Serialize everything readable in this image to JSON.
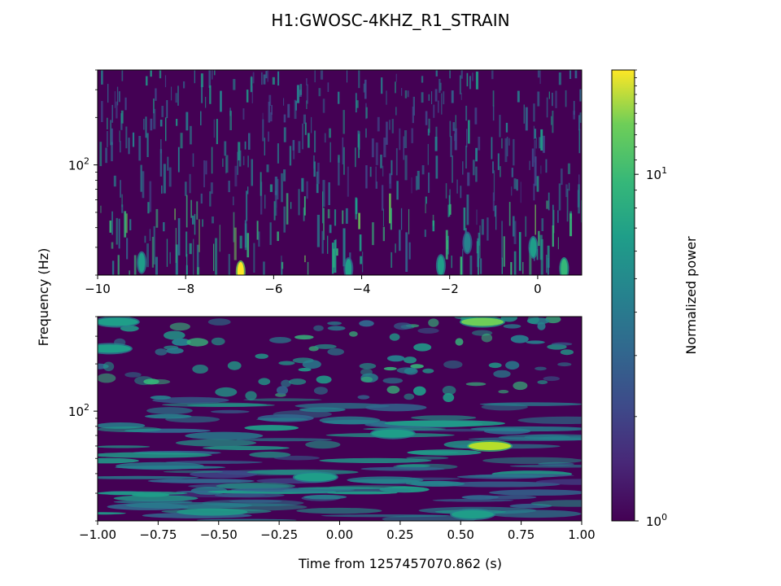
{
  "chart_data": [
    {
      "type": "heatmap",
      "title": "H1:GWOSC-4KHZ_R1_STRAIN",
      "ylabel": "Frequency (Hz)",
      "xlim": [
        -10,
        1
      ],
      "ylim": [
        20,
        400
      ],
      "y_scale": "log",
      "x_ticks": [
        "−10",
        "−8",
        "−6",
        "−4",
        "−2",
        "0"
      ],
      "x_tick_values": [
        -10,
        -8,
        -6,
        -4,
        -2,
        0
      ],
      "y_tick_label": "10^2",
      "y_tick_value": 100,
      "colormap": "viridis",
      "pattern": "dense vertical streaks across all frequencies, brightest blobs near the bottom edge",
      "hotspots": [
        {
          "x": -6.75,
          "y": 21,
          "level": 1.0
        },
        {
          "x": -9.0,
          "y": 24,
          "level": 0.55
        },
        {
          "x": -2.2,
          "y": 23,
          "level": 0.6
        },
        {
          "x": 0.6,
          "y": 22,
          "level": 0.7
        },
        {
          "x": -0.1,
          "y": 30,
          "level": 0.55
        },
        {
          "x": -4.3,
          "y": 22,
          "level": 0.5
        },
        {
          "x": -1.6,
          "y": 32,
          "level": 0.45
        }
      ]
    },
    {
      "type": "heatmap",
      "xlabel": "Time from 1257457070.862 (s)",
      "xlim": [
        -1.0,
        1.0
      ],
      "ylim": [
        20,
        400
      ],
      "y_scale": "log",
      "x_ticks": [
        "−1.00",
        "−0.75",
        "−0.50",
        "−0.25",
        "0.00",
        "0.25",
        "0.50",
        "0.75",
        "1.00"
      ],
      "x_tick_values": [
        -1.0,
        -0.75,
        -0.5,
        -0.25,
        0.0,
        0.25,
        0.5,
        0.75,
        1.0
      ],
      "y_tick_label": "10^2",
      "y_tick_value": 100,
      "colormap": "viridis",
      "pattern": "horizontal streaks at low frequency, blobby texture at high frequency",
      "hotspots": [
        {
          "x": 0.62,
          "y": 60,
          "level": 0.85
        },
        {
          "x": 0.22,
          "y": 72,
          "level": 0.6
        },
        {
          "x": -0.1,
          "y": 38,
          "level": 0.55
        },
        {
          "x": 0.55,
          "y": 22,
          "level": 0.55
        },
        {
          "x": 0.59,
          "y": 370,
          "level": 0.75
        },
        {
          "x": -0.92,
          "y": 370,
          "level": 0.6
        },
        {
          "x": -0.95,
          "y": 250,
          "level": 0.55
        }
      ]
    }
  ],
  "shared": {
    "ylabel": "Frequency (Hz)"
  },
  "colorbar": {
    "label": "Normalized power",
    "scale": "log",
    "range": [
      1,
      20
    ],
    "ticks": [
      {
        "label": "10^0",
        "value": 1
      },
      {
        "label": "10^1",
        "value": 10
      }
    ],
    "colormap": "viridis"
  },
  "colors": {
    "viridis_low": "#440154",
    "viridis_mid": "#21908d",
    "viridis_high": "#fde725"
  }
}
